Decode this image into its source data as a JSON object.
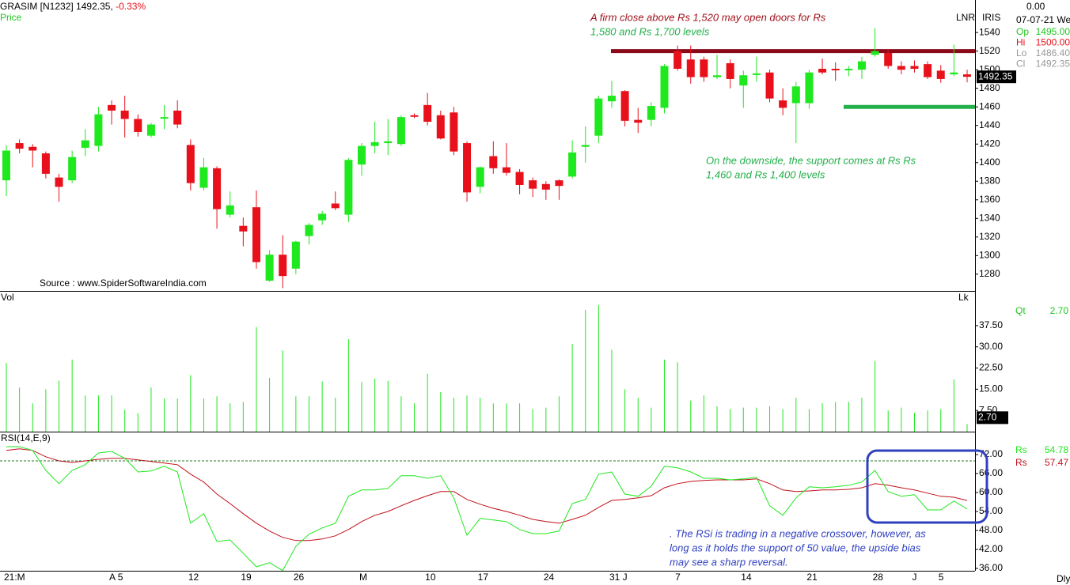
{
  "header": {
    "symbol": "GRASIM [N1232]",
    "price": "1492.35,",
    "change": "-0.33%",
    "subtitle": "Price",
    "mode": "LNR",
    "indicator": "IRIS"
  },
  "info_panel": {
    "top": "0.00",
    "date": "07-07-21 We",
    "rows": [
      [
        "Op",
        "1495.00"
      ],
      [
        "Hi",
        "1500.00"
      ],
      [
        "Lo",
        "1486.40"
      ],
      [
        "Cl",
        "1492.35"
      ]
    ]
  },
  "footer": "Dly",
  "chart_data": [
    {
      "type": "candlestick",
      "categories": [
        "21:M",
        null,
        null,
        null,
        null,
        null,
        null,
        null,
        "A 5",
        null,
        null,
        null,
        null,
        null,
        "12",
        null,
        null,
        null,
        "19",
        null,
        null,
        null,
        "26",
        null,
        null,
        null,
        null,
        "M",
        null,
        null,
        null,
        null,
        "10",
        null,
        null,
        null,
        "17",
        null,
        null,
        null,
        null,
        "24",
        null,
        null,
        null,
        null,
        "31 J",
        null,
        null,
        null,
        null,
        "7",
        null,
        null,
        null,
        null,
        "14",
        null,
        null,
        null,
        null,
        "21",
        null,
        null,
        null,
        null,
        "28",
        null,
        null,
        "J",
        null,
        "5",
        null,
        null
      ],
      "open": [
        1381,
        1421,
        1417,
        1410,
        1384,
        1381,
        1416,
        1418,
        1462,
        1456,
        1447,
        1429,
        1448,
        1456,
        1419,
        1373,
        1394,
        1344,
        1332,
        1352,
        1273,
        1301,
        1286,
        1321,
        1338,
        1356,
        1344,
        1398,
        1418,
        1421,
        1420,
        1451,
        1462,
        1451,
        1454,
        1421,
        1374,
        1407,
        1395,
        1390,
        1381,
        1377,
        1381,
        1385,
        1417,
        1429,
        1466,
        1477,
        1446,
        1446,
        1459,
        1520,
        1511,
        1511,
        1492,
        1507,
        1483,
        1495,
        1497,
        1467,
        1464,
        1464,
        1501,
        1501,
        1500,
        1500,
        1516,
        1518,
        1504,
        1504,
        1506,
        1499,
        1495,
        1495
      ],
      "high": [
        1419,
        1425,
        1420,
        1412,
        1388,
        1413,
        1436,
        1460,
        1467,
        1472,
        1452,
        1443,
        1462,
        1467,
        1425,
        1405,
        1396,
        1369,
        1341,
        1370,
        1306,
        1322,
        1316,
        1335,
        1348,
        1369,
        1405,
        1421,
        1444,
        1447,
        1451,
        1453,
        1475,
        1456,
        1460,
        1423,
        1396,
        1423,
        1421,
        1393,
        1384,
        1380,
        1382,
        1424,
        1439,
        1472,
        1488,
        1478,
        1459,
        1465,
        1506,
        1526,
        1526,
        1514,
        1516,
        1511,
        1499,
        1514,
        1500,
        1480,
        1487,
        1500,
        1512,
        1508,
        1504,
        1514,
        1545,
        1522,
        1509,
        1510,
        1509,
        1505,
        1527,
        1500
      ],
      "low": [
        1364,
        1410,
        1395,
        1383,
        1358,
        1378,
        1407,
        1412,
        1441,
        1427,
        1428,
        1427,
        1436,
        1437,
        1370,
        1370,
        1329,
        1341,
        1310,
        1286,
        1272,
        1265,
        1280,
        1312,
        1333,
        1349,
        1336,
        1386,
        1410,
        1408,
        1418,
        1448,
        1440,
        1425,
        1408,
        1358,
        1367,
        1388,
        1386,
        1366,
        1363,
        1360,
        1360,
        1383,
        1400,
        1421,
        1459,
        1439,
        1432,
        1439,
        1453,
        1499,
        1485,
        1487,
        1490,
        1480,
        1459,
        1487,
        1465,
        1451,
        1421,
        1458,
        1495,
        1488,
        1493,
        1490,
        1514,
        1501,
        1495,
        1497,
        1490,
        1486,
        1493,
        1486.4
      ],
      "close": [
        1413,
        1415,
        1413,
        1388,
        1374,
        1406,
        1424,
        1452,
        1456,
        1447,
        1433,
        1441,
        1449,
        1441,
        1378,
        1395,
        1350,
        1354,
        1326,
        1293,
        1301,
        1278,
        1315,
        1333,
        1345,
        1351,
        1403,
        1418,
        1422,
        1423,
        1449,
        1450,
        1444,
        1426,
        1412,
        1368,
        1395,
        1394,
        1389,
        1376,
        1372,
        1371,
        1375,
        1411,
        1419,
        1469,
        1472,
        1445,
        1443,
        1461,
        1504,
        1501,
        1492,
        1492,
        1494,
        1490,
        1494,
        1496,
        1469,
        1459,
        1482,
        1497,
        1497,
        1500,
        1501,
        1509,
        1520,
        1504,
        1500,
        1501,
        1492,
        1490,
        1497,
        1492.35
      ],
      "up_color": "#1ee81e",
      "down_color": "#e8101a",
      "ylim": [
        1262,
        1575
      ],
      "yticks": [
        1280,
        1300,
        1320,
        1340,
        1360,
        1380,
        1400,
        1420,
        1440,
        1460,
        1480,
        1500,
        1520,
        1540
      ],
      "last_label": "1492.35",
      "source": "Source : www.SpiderSoftwareIndia.com",
      "levels": [
        {
          "value": 1520,
          "color": "#8b0a1a"
        },
        {
          "value": 1460,
          "color": "#22b04a"
        }
      ],
      "annotations": [
        {
          "text": "A firm close above Rs 1,520 may open doors for Rs",
          "color": "#a0101a"
        },
        {
          "text": "1,580 and Rs 1,700 levels",
          "color": "#22b04a"
        },
        {
          "text": "On the downside, the support comes at Rs Rs",
          "color": "#22b04a"
        },
        {
          "text": "1,460 and Rs 1,400 levels",
          "color": "#22b04a"
        }
      ]
    },
    {
      "type": "bar",
      "label": "Vol",
      "corner": "Lk",
      "values": [
        24.3,
        15.6,
        10,
        15,
        18,
        25.5,
        12.8,
        12.8,
        12.8,
        7.8,
        6.5,
        15.6,
        11.7,
        11.7,
        20,
        11.7,
        12.5,
        10,
        10.5,
        37,
        19,
        28.7,
        12.5,
        12.5,
        17.8,
        12,
        32.7,
        17.5,
        18.8,
        18,
        12.5,
        10,
        20.5,
        14,
        12,
        12.8,
        12,
        10,
        10,
        10,
        8,
        8.5,
        12.5,
        31,
        43.1,
        44.8,
        29,
        15,
        12,
        8.5,
        25.5,
        24.5,
        11,
        12.8,
        9,
        8,
        8.5,
        8.5,
        9,
        8,
        12,
        8,
        10,
        10.5,
        10.5,
        12,
        25,
        7.5,
        8.5,
        6.7,
        7.5,
        8,
        18.5,
        2.7
      ],
      "color": "#1ee81e",
      "ylim": [
        0,
        49.5
      ],
      "yticks": [
        {
          "value": 7.5,
          "label": "7.50"
        },
        {
          "value": 15,
          "label": "15.00"
        },
        {
          "value": 22.5,
          "label": "22.50"
        },
        {
          "value": 30,
          "label": "30.00"
        },
        {
          "value": 37.5,
          "label": "37.50"
        }
      ],
      "qt_label": "Qt",
      "qt_value": "2.70",
      "last_label": "2.70"
    },
    {
      "type": "line",
      "title": "RSI(14,E,9)",
      "series": [
        {
          "name": "Rs",
          "color": "#1ee81e",
          "value_label": "54.78",
          "values": [
            74.5,
            74.5,
            73.3,
            67,
            62.8,
            67,
            68.8,
            72.5,
            73,
            70.8,
            66.5,
            66.8,
            68.3,
            66.5,
            50.3,
            53.3,
            44.5,
            45,
            40.8,
            36.5,
            37.8,
            35.3,
            43,
            46.8,
            48.8,
            50.3,
            58.8,
            60.8,
            60.8,
            61.3,
            65.3,
            65.3,
            64.5,
            65.3,
            58.3,
            46.5,
            51.8,
            51.3,
            50.8,
            48.3,
            47,
            47,
            47.8,
            56.5,
            57.8,
            65.8,
            66.5,
            59.5,
            58.8,
            62,
            68.3,
            67.8,
            66.5,
            64.5,
            64.5,
            64,
            64.3,
            64.8,
            55.8,
            52.8,
            58.3,
            61.8,
            61.5,
            61.8,
            62.3,
            63.3,
            67,
            60.3,
            58.8,
            59.3,
            54.5,
            54.5,
            57.3,
            54.78
          ]
        },
        {
          "name": "Rs",
          "color": "#c0101a",
          "value_label": "57.47",
          "values": [
            73.3,
            73.8,
            73.3,
            71.3,
            70,
            69.5,
            70,
            70.5,
            70.8,
            70.8,
            70.3,
            69.8,
            69.3,
            68.8,
            65.8,
            63.3,
            59.5,
            56.5,
            53.3,
            50.3,
            47.8,
            45.8,
            44.8,
            44.8,
            45.3,
            46.3,
            48.3,
            50.8,
            52.8,
            54,
            55.8,
            57.5,
            59,
            60.3,
            60.3,
            57.8,
            56.3,
            55,
            54,
            52.8,
            51.5,
            50.8,
            50.3,
            51.5,
            52.8,
            55.3,
            57.5,
            57.8,
            58.3,
            59,
            61.5,
            62.8,
            63.5,
            63.8,
            64,
            64,
            64,
            64.3,
            62.8,
            60.8,
            60.3,
            60.5,
            60.8,
            60.8,
            61,
            61.5,
            62.8,
            62.3,
            61.5,
            60.8,
            59.8,
            58.8,
            58.5,
            57.47
          ]
        }
      ],
      "ylim": [
        35.25,
        79
      ],
      "yticks": [
        {
          "value": 36,
          "label": "36.00"
        },
        {
          "value": 42,
          "label": "42.00"
        },
        {
          "value": 48,
          "label": "48.00"
        },
        {
          "value": 54,
          "label": "54.00"
        },
        {
          "value": 60,
          "label": "60.00"
        },
        {
          "value": 66,
          "label": "66.00"
        },
        {
          "value": 72,
          "label": "72.00"
        }
      ],
      "ref_line": 70,
      "annotations": [
        {
          "text": ". The RSi is trading in a negative crossover, however, as",
          "color": "#3040c0"
        },
        {
          "text": "long as it holds the support of 50 value, the upside bias",
          "color": "#3040c0"
        },
        {
          "text": "may see a sharp reversal.",
          "color": "#3040c0"
        }
      ]
    }
  ]
}
